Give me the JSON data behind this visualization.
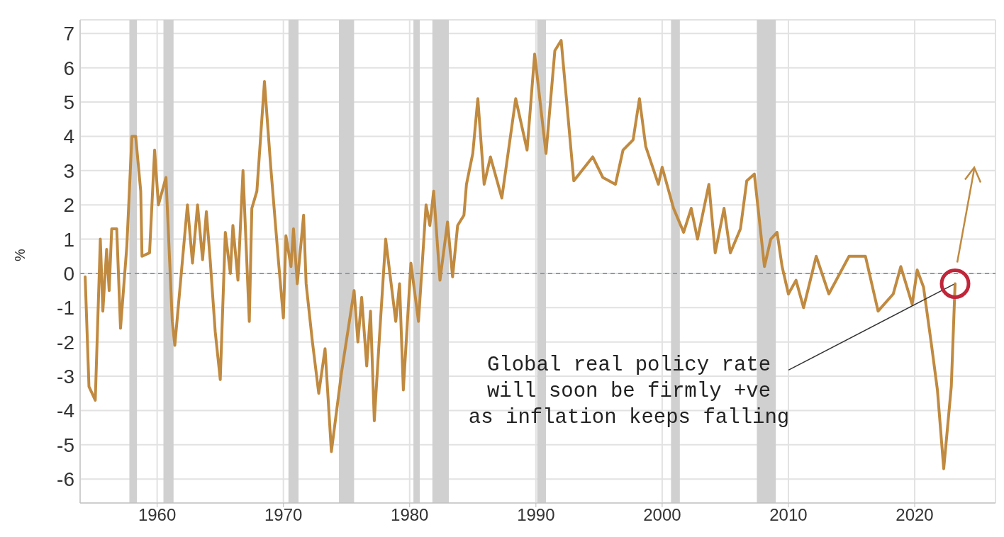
{
  "chart_data": {
    "type": "line",
    "ylabel": "%",
    "xlim": [
      1953.9,
      2026.4
    ],
    "xticks": [
      1960,
      1970,
      1980,
      1990,
      2000,
      2010,
      2020
    ],
    "ylim": [
      -6.7,
      7.4
    ],
    "yticks": [
      -6,
      -5,
      -4,
      -3,
      -2,
      -1,
      0,
      1,
      2,
      3,
      4,
      5,
      6,
      7
    ],
    "grid": true,
    "ref_lines": [
      {
        "axis": "y",
        "value": 0,
        "color": "#8a9bb0",
        "line_style": "dashed"
      }
    ],
    "bands": [
      {
        "axis": "x",
        "from": 1957.8,
        "to": 1958.4,
        "color": "#d0d0d0"
      },
      {
        "axis": "x",
        "from": 1960.5,
        "to": 1961.3,
        "color": "#d0d0d0"
      },
      {
        "axis": "x",
        "from": 1970.4,
        "to": 1971.2,
        "color": "#d0d0d0"
      },
      {
        "axis": "x",
        "from": 1974.4,
        "to": 1975.6,
        "color": "#d0d0d0"
      },
      {
        "axis": "x",
        "from": 1980.3,
        "to": 1980.8,
        "color": "#d0d0d0"
      },
      {
        "axis": "x",
        "from": 1981.8,
        "to": 1983.1,
        "color": "#d0d0d0"
      },
      {
        "axis": "x",
        "from": 1990.1,
        "to": 1990.8,
        "color": "#d0d0d0"
      },
      {
        "axis": "x",
        "from": 2000.7,
        "to": 2001.4,
        "color": "#d0d0d0"
      },
      {
        "axis": "x",
        "from": 2007.5,
        "to": 2009.0,
        "color": "#d0d0d0"
      }
    ],
    "annotations": [
      {
        "text": "Global real policy rate\nwill soon be firmly +ve\nas inflation keeps falling",
        "x": 2023.2,
        "y": -0.3
      }
    ],
    "series": [
      {
        "color": "#c08a40",
        "x": [
          1954.3,
          1954.6,
          1955.1,
          1955.5,
          1955.7,
          1956.0,
          1956.2,
          1956.4,
          1956.8,
          1957.1,
          1957.6,
          1958.0,
          1958.3,
          1958.7,
          1958.8,
          1959.4,
          1959.8,
          1960.1,
          1960.7,
          1961.2,
          1961.4,
          1962.4,
          1962.8,
          1963.2,
          1963.6,
          1963.9,
          1964.2,
          1964.6,
          1965.0,
          1965.4,
          1965.8,
          1966.0,
          1966.4,
          1966.8,
          1967.3,
          1967.5,
          1967.9,
          1968.5,
          1969.0,
          1969.6,
          1970.0,
          1970.2,
          1970.6,
          1970.8,
          1971.1,
          1971.6,
          1971.8,
          1972.3,
          1972.8,
          1973.3,
          1973.8,
          1974.6,
          1975.6,
          1975.9,
          1976.2,
          1976.6,
          1976.9,
          1977.2,
          1977.6,
          1978.1,
          1978.5,
          1978.9,
          1979.2,
          1979.5,
          1980.1,
          1980.7,
          1981.3,
          1981.6,
          1981.9,
          1982.4,
          1983.0,
          1983.4,
          1983.8,
          1984.3,
          1984.5,
          1985.0,
          1985.4,
          1985.9,
          1986.4,
          1987.3,
          1988.4,
          1989.3,
          1989.9,
          1990.8,
          1991.5,
          1992.0,
          1993.0,
          1994.5,
          1995.3,
          1996.3,
          1996.9,
          1997.7,
          1998.2,
          1998.7,
          1999.7,
          2000.0,
          2000.9,
          2001.7,
          2002.3,
          2002.8,
          2003.7,
          2004.2,
          2004.9,
          2005.4,
          2006.2,
          2006.7,
          2007.3,
          2008.1,
          2008.6,
          2009.1,
          2009.5,
          2010.0,
          2010.6,
          2011.2,
          2012.2,
          2013.2,
          2014.8,
          2016.1,
          2017.1,
          2018.3,
          2018.9,
          2019.8,
          2020.2,
          2020.7,
          2021.3,
          2021.8,
          2022.3,
          2022.9,
          2023.2
        ],
        "values": [
          -0.1,
          -3.3,
          -3.7,
          1.0,
          -1.1,
          0.7,
          -0.5,
          1.3,
          1.3,
          -1.6,
          0.8,
          4.0,
          4.0,
          2.4,
          0.5,
          0.6,
          3.6,
          2.0,
          2.8,
          -1.4,
          -2.1,
          2.0,
          0.3,
          2.0,
          0.4,
          1.8,
          0.4,
          -1.7,
          -3.1,
          1.2,
          0.0,
          1.4,
          -0.2,
          3.0,
          -1.4,
          1.9,
          2.4,
          5.6,
          3.1,
          0.4,
          -1.3,
          1.1,
          0.2,
          1.3,
          -0.3,
          1.7,
          -0.3,
          -2.0,
          -3.5,
          -2.2,
          -5.2,
          -2.9,
          -0.5,
          -2.0,
          -0.7,
          -2.7,
          -1.1,
          -4.3,
          -1.9,
          1.0,
          -0.2,
          -1.4,
          -0.3,
          -3.4,
          0.3,
          -1.4,
          2.0,
          1.4,
          2.4,
          -0.2,
          1.5,
          -0.1,
          1.4,
          1.7,
          2.6,
          3.5,
          5.1,
          2.6,
          3.4,
          2.2,
          5.1,
          3.6,
          6.4,
          3.5,
          6.5,
          6.8,
          2.7,
          3.4,
          2.8,
          2.6,
          3.6,
          3.9,
          5.1,
          3.7,
          2.6,
          3.1,
          1.9,
          1.2,
          1.9,
          1.0,
          2.6,
          0.6,
          1.9,
          0.6,
          1.3,
          2.7,
          2.9,
          0.2,
          1.0,
          1.2,
          0.2,
          -0.6,
          -0.2,
          -1.0,
          0.5,
          -0.6,
          0.5,
          0.5,
          -1.1,
          -0.6,
          0.2,
          -0.9,
          0.1,
          -0.4,
          -2.0,
          -3.4,
          -5.7,
          -3.3,
          -0.3
        ]
      }
    ]
  }
}
